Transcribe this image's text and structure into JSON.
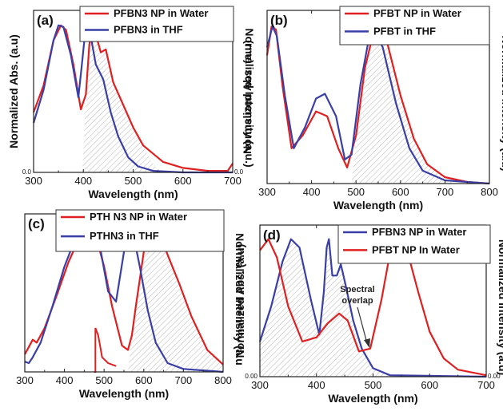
{
  "colors": {
    "red": "#e02020",
    "blue": "#3a3fa8",
    "hatch": "#bbbbbb"
  },
  "chart_data": [
    {
      "panel": "(a)",
      "type": "line",
      "xlabel": "Wavelength (nm)",
      "ylabel_left": "Normalized Abs. (a.u)",
      "ylabel_right": "Normalized Intensity (a.u.)",
      "xlim": [
        300,
        700
      ],
      "xticks": [
        "300",
        "400",
        "500",
        "600",
        "700"
      ],
      "ylim": [
        0,
        1.08
      ],
      "y_tick_left": "0.0",
      "y_tick_right": "0.0",
      "legend": [
        "PFBN3 NP in Water",
        "PFBN3  in THF"
      ],
      "series": [
        {
          "name": "PFBN3 NP in Water",
          "color": "red",
          "points": [
            [
              300,
              0.4
            ],
            [
              320,
              0.58
            ],
            [
              340,
              0.88
            ],
            [
              355,
              0.98
            ],
            [
              365,
              0.95
            ],
            [
              380,
              0.72
            ],
            [
              395,
              0.42
            ],
            [
              405,
              0.52
            ],
            [
              412,
              0.85
            ],
            [
              418,
              0.98
            ],
            [
              425,
              0.92
            ],
            [
              435,
              0.8
            ],
            [
              445,
              0.82
            ],
            [
              460,
              0.6
            ],
            [
              480,
              0.45
            ],
            [
              500,
              0.3
            ],
            [
              520,
              0.18
            ],
            [
              560,
              0.07
            ],
            [
              600,
              0.03
            ],
            [
              650,
              0.01
            ],
            [
              690,
              0.01
            ],
            [
              700,
              0.06
            ]
          ]
        },
        {
          "name": "PFBN3  in THF",
          "color": "blue",
          "points": [
            [
              300,
              0.33
            ],
            [
              320,
              0.55
            ],
            [
              340,
              0.88
            ],
            [
              350,
              0.98
            ],
            [
              360,
              0.97
            ],
            [
              375,
              0.78
            ],
            [
              390,
              0.5
            ],
            [
              398,
              0.75
            ],
            [
              405,
              0.98
            ],
            [
              412,
              0.96
            ],
            [
              425,
              0.72
            ],
            [
              440,
              0.62
            ],
            [
              455,
              0.4
            ],
            [
              470,
              0.24
            ],
            [
              490,
              0.1
            ],
            [
              510,
              0.04
            ],
            [
              540,
              0.01
            ],
            [
              600,
              0.0
            ],
            [
              700,
              0.0
            ]
          ]
        }
      ],
      "hatched": [
        [
          398,
          0
        ],
        [
          405,
          0.5
        ],
        [
          412,
          0.85
        ],
        [
          418,
          0.98
        ],
        [
          425,
          0.92
        ],
        [
          435,
          0.8
        ],
        [
          445,
          0.82
        ],
        [
          460,
          0.6
        ],
        [
          480,
          0.45
        ],
        [
          500,
          0.3
        ],
        [
          520,
          0.18
        ],
        [
          540,
          0.05
        ],
        [
          560,
          0
        ]
      ]
    },
    {
      "panel": "(b)",
      "type": "line",
      "xlabel": "Wavelength (nm)",
      "ylabel_left": "Normalized Abs. (a.u)",
      "ylabel_right": "Normalized intensity (a.u)",
      "xlim": [
        300,
        800
      ],
      "xticks": [
        "300",
        "400",
        "500",
        "600",
        "700",
        "800"
      ],
      "ylim": [
        0,
        1.08
      ],
      "legend": [
        "PFBT NP in Water",
        "PFBT in THF"
      ],
      "series": [
        {
          "name": "PFBT NP in Water",
          "color": "red",
          "points": [
            [
              300,
              0.8
            ],
            [
              310,
              0.98
            ],
            [
              320,
              0.96
            ],
            [
              335,
              0.6
            ],
            [
              355,
              0.22
            ],
            [
              380,
              0.3
            ],
            [
              410,
              0.45
            ],
            [
              435,
              0.42
            ],
            [
              460,
              0.22
            ],
            [
              480,
              0.1
            ],
            [
              500,
              0.3
            ],
            [
              520,
              0.72
            ],
            [
              540,
              0.95
            ],
            [
              550,
              0.98
            ],
            [
              570,
              0.88
            ],
            [
              600,
              0.55
            ],
            [
              630,
              0.28
            ],
            [
              660,
              0.12
            ],
            [
              700,
              0.04
            ],
            [
              750,
              0.01
            ],
            [
              800,
              0.0
            ]
          ]
        },
        {
          "name": "PFBT in THF",
          "color": "blue",
          "points": [
            [
              300,
              0.85
            ],
            [
              312,
              0.98
            ],
            [
              322,
              0.92
            ],
            [
              340,
              0.55
            ],
            [
              360,
              0.22
            ],
            [
              385,
              0.35
            ],
            [
              410,
              0.53
            ],
            [
              430,
              0.56
            ],
            [
              455,
              0.42
            ],
            [
              475,
              0.15
            ],
            [
              490,
              0.18
            ],
            [
              510,
              0.62
            ],
            [
              530,
              0.92
            ],
            [
              540,
              0.96
            ],
            [
              560,
              0.85
            ],
            [
              590,
              0.5
            ],
            [
              620,
              0.22
            ],
            [
              650,
              0.08
            ],
            [
              700,
              0.02
            ],
            [
              800,
              0.0
            ]
          ]
        }
      ],
      "hatched": [
        [
          490,
          0
        ],
        [
          500,
          0.3
        ],
        [
          520,
          0.72
        ],
        [
          540,
          0.95
        ],
        [
          550,
          0.98
        ],
        [
          570,
          0.88
        ],
        [
          600,
          0.55
        ],
        [
          630,
          0.28
        ],
        [
          660,
          0.12
        ],
        [
          700,
          0.04
        ],
        [
          720,
          0
        ]
      ]
    },
    {
      "panel": "(c)",
      "type": "line",
      "xlabel": "Wavelength (nm)",
      "ylabel_right": "Normalized Intensity (a.u",
      "xlim": [
        300,
        800
      ],
      "xticks": [
        "300",
        "400",
        "500",
        "600",
        "700",
        "800"
      ],
      "ylim": [
        0,
        1.08
      ],
      "legend": [
        "PTH N3 NP in Water",
        "PTHN3 in THF"
      ],
      "series": [
        {
          "name": "PTH N3 NP in Water",
          "color": "red",
          "points": [
            [
              300,
              0.12
            ],
            [
              310,
              0.17
            ],
            [
              320,
              0.22
            ],
            [
              330,
              0.2
            ],
            [
              350,
              0.3
            ],
            [
              380,
              0.52
            ],
            [
              410,
              0.75
            ],
            [
              440,
              0.93
            ],
            [
              460,
              0.98
            ],
            [
              480,
              0.92
            ],
            [
              500,
              0.72
            ],
            [
              520,
              0.45
            ],
            [
              545,
              0.18
            ],
            [
              560,
              0.15
            ],
            [
              570,
              0.25
            ],
            [
              580,
              0.45
            ],
            [
              600,
              0.82
            ],
            [
              620,
              0.98
            ],
            [
              640,
              0.95
            ],
            [
              660,
              0.8
            ],
            [
              690,
              0.6
            ],
            [
              720,
              0.38
            ],
            [
              760,
              0.15
            ],
            [
              800,
              0.05
            ]
          ]
        },
        {
          "name": "PTHN3 in THF",
          "color": "blue",
          "points": [
            [
              300,
              0.07
            ],
            [
              310,
              0.06
            ],
            [
              320,
              0.1
            ],
            [
              340,
              0.2
            ],
            [
              370,
              0.45
            ],
            [
              400,
              0.72
            ],
            [
              430,
              0.93
            ],
            [
              460,
              0.98
            ],
            [
              490,
              0.85
            ],
            [
              510,
              0.55
            ],
            [
              530,
              0.48
            ],
            [
              550,
              0.82
            ],
            [
              562,
              0.98
            ],
            [
              575,
              0.92
            ],
            [
              590,
              0.72
            ],
            [
              610,
              0.42
            ],
            [
              630,
              0.2
            ],
            [
              660,
              0.06
            ],
            [
              700,
              0.02
            ],
            [
              800,
              0.0
            ]
          ]
        }
      ],
      "red_step": [
        [
          475,
          0
        ],
        [
          478,
          0
        ],
        [
          478,
          0.3
        ],
        [
          485,
          0.25
        ],
        [
          495,
          0.1
        ],
        [
          510,
          0.06
        ],
        [
          530,
          0.04
        ]
      ],
      "hatched": [
        [
          560,
          0
        ],
        [
          570,
          0.25
        ],
        [
          580,
          0.45
        ],
        [
          600,
          0.82
        ],
        [
          620,
          0.98
        ],
        [
          640,
          0.95
        ],
        [
          660,
          0.8
        ],
        [
          690,
          0.6
        ],
        [
          720,
          0.38
        ],
        [
          760,
          0.15
        ],
        [
          800,
          0.05
        ],
        [
          800,
          0
        ]
      ]
    },
    {
      "panel": "(d)",
      "type": "line",
      "xlabel": "Wavelength (nm)",
      "ylabel_left": "Normalized Abs. (a.u)",
      "ylabel_right": "Normalized intensity (a.u)",
      "xlim": [
        300,
        700
      ],
      "xticks": [
        "300",
        "400",
        "500",
        "600",
        "700"
      ],
      "ylim": [
        0,
        1.08
      ],
      "y_tick_left": "0.00",
      "y_tick_right": "0.00",
      "legend": [
        "PFBN3 NP in Water",
        "PFBT NP In Water"
      ],
      "annotation": [
        "Spectral",
        "overlap"
      ],
      "series": [
        {
          "name": "PFBN3 NP in Water",
          "color": "blue",
          "points": [
            [
              300,
              0.25
            ],
            [
              320,
              0.5
            ],
            [
              340,
              0.82
            ],
            [
              355,
              0.98
            ],
            [
              370,
              0.92
            ],
            [
              390,
              0.55
            ],
            [
              405,
              0.3
            ],
            [
              413,
              0.6
            ],
            [
              418,
              0.92
            ],
            [
              422,
              0.98
            ],
            [
              428,
              0.72
            ],
            [
              436,
              0.72
            ],
            [
              443,
              0.8
            ],
            [
              450,
              0.68
            ],
            [
              465,
              0.4
            ],
            [
              480,
              0.2
            ],
            [
              500,
              0.06
            ],
            [
              530,
              0.01
            ],
            [
              700,
              0.0
            ]
          ]
        },
        {
          "name": "PFBT NP In Water",
          "color": "red",
          "points": [
            [
              300,
              0.9
            ],
            [
              315,
              0.98
            ],
            [
              330,
              0.85
            ],
            [
              350,
              0.5
            ],
            [
              375,
              0.25
            ],
            [
              400,
              0.28
            ],
            [
              420,
              0.38
            ],
            [
              440,
              0.45
            ],
            [
              455,
              0.4
            ],
            [
              475,
              0.18
            ],
            [
              495,
              0.2
            ],
            [
              515,
              0.55
            ],
            [
              530,
              0.88
            ],
            [
              545,
              0.98
            ],
            [
              560,
              0.9
            ],
            [
              580,
              0.6
            ],
            [
              600,
              0.32
            ],
            [
              625,
              0.13
            ],
            [
              650,
              0.05
            ],
            [
              700,
              0.01
            ]
          ]
        }
      ],
      "hatched": [
        [
          300,
          0
        ],
        [
          300,
          0.25
        ],
        [
          320,
          0.5
        ],
        [
          340,
          0.82
        ],
        [
          355,
          0.98
        ],
        [
          370,
          0.92
        ],
        [
          390,
          0.55
        ],
        [
          405,
          0.3
        ],
        [
          413,
          0.6
        ],
        [
          418,
          0.92
        ],
        [
          422,
          0.98
        ],
        [
          428,
          0.72
        ],
        [
          436,
          0.72
        ],
        [
          443,
          0.8
        ],
        [
          450,
          0.68
        ],
        [
          465,
          0.4
        ],
        [
          480,
          0.2
        ],
        [
          500,
          0.06
        ],
        [
          530,
          0.01
        ],
        [
          540,
          0
        ]
      ]
    }
  ]
}
